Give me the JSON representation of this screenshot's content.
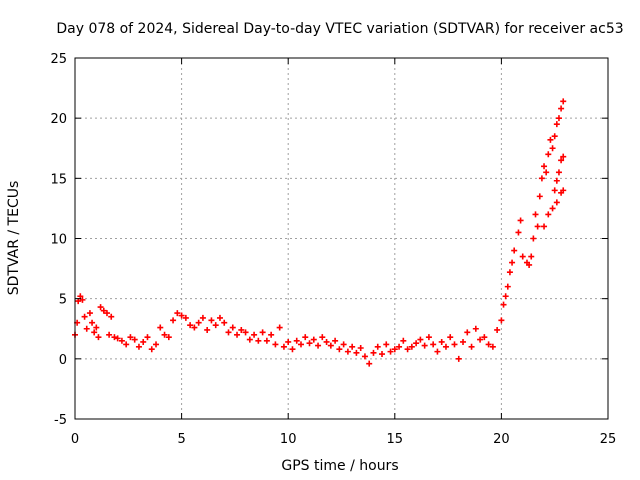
{
  "colors": {
    "series": "#ff0000",
    "grid": "#a0a0a0",
    "axis": "#000000",
    "background": "#ffffff"
  },
  "chart_data": {
    "type": "scatter",
    "title": "Day 078 of 2024, Sidereal Day-to-day VTEC variation (SDTVAR) for receiver ac53",
    "xlabel": "GPS time / hours",
    "ylabel": "SDTVAR / TECUs",
    "xlim": [
      0,
      25
    ],
    "ylim": [
      -5,
      25
    ],
    "xticks": [
      0,
      5,
      10,
      15,
      20,
      25
    ],
    "yticks": [
      -5,
      0,
      5,
      10,
      15,
      20,
      25
    ],
    "grid": true,
    "marker": "+",
    "series": [
      {
        "name": "SDTVAR",
        "color": "#ff0000",
        "points": [
          [
            0.0,
            2.0
          ],
          [
            0.1,
            3.0
          ],
          [
            0.15,
            4.8
          ],
          [
            0.25,
            5.2
          ],
          [
            0.35,
            4.9
          ],
          [
            0.45,
            3.5
          ],
          [
            0.55,
            2.5
          ],
          [
            0.7,
            3.8
          ],
          [
            0.8,
            3.0
          ],
          [
            0.9,
            2.2
          ],
          [
            1.0,
            2.6
          ],
          [
            1.1,
            1.8
          ],
          [
            1.2,
            4.3
          ],
          [
            1.35,
            4.0
          ],
          [
            1.5,
            3.8
          ],
          [
            1.6,
            2.0
          ],
          [
            1.7,
            3.5
          ],
          [
            1.85,
            1.8
          ],
          [
            2.0,
            1.7
          ],
          [
            2.2,
            1.5
          ],
          [
            2.4,
            1.2
          ],
          [
            2.6,
            1.8
          ],
          [
            2.8,
            1.6
          ],
          [
            3.0,
            1.0
          ],
          [
            3.2,
            1.4
          ],
          [
            3.4,
            1.8
          ],
          [
            3.6,
            0.8
          ],
          [
            3.8,
            1.2
          ],
          [
            4.0,
            2.6
          ],
          [
            4.2,
            2.0
          ],
          [
            4.4,
            1.8
          ],
          [
            4.6,
            3.2
          ],
          [
            4.8,
            3.8
          ],
          [
            5.0,
            3.6
          ],
          [
            5.2,
            3.4
          ],
          [
            5.4,
            2.8
          ],
          [
            5.6,
            2.6
          ],
          [
            5.8,
            3.0
          ],
          [
            6.0,
            3.4
          ],
          [
            6.2,
            2.4
          ],
          [
            6.4,
            3.2
          ],
          [
            6.6,
            2.8
          ],
          [
            6.8,
            3.4
          ],
          [
            7.0,
            3.0
          ],
          [
            7.2,
            2.2
          ],
          [
            7.4,
            2.6
          ],
          [
            7.6,
            2.0
          ],
          [
            7.8,
            2.4
          ],
          [
            8.0,
            2.2
          ],
          [
            8.2,
            1.6
          ],
          [
            8.4,
            2.0
          ],
          [
            8.6,
            1.5
          ],
          [
            8.8,
            2.2
          ],
          [
            9.0,
            1.5
          ],
          [
            9.2,
            2.0
          ],
          [
            9.4,
            1.2
          ],
          [
            9.6,
            2.6
          ],
          [
            9.8,
            1.0
          ],
          [
            10.0,
            1.4
          ],
          [
            10.2,
            0.8
          ],
          [
            10.4,
            1.5
          ],
          [
            10.6,
            1.2
          ],
          [
            10.8,
            1.8
          ],
          [
            11.0,
            1.3
          ],
          [
            11.2,
            1.6
          ],
          [
            11.4,
            1.1
          ],
          [
            11.6,
            1.8
          ],
          [
            11.8,
            1.4
          ],
          [
            12.0,
            1.1
          ],
          [
            12.2,
            1.5
          ],
          [
            12.4,
            0.8
          ],
          [
            12.6,
            1.2
          ],
          [
            12.8,
            0.6
          ],
          [
            13.0,
            1.0
          ],
          [
            13.2,
            0.5
          ],
          [
            13.4,
            0.9
          ],
          [
            13.6,
            0.2
          ],
          [
            13.8,
            -0.4
          ],
          [
            14.0,
            0.5
          ],
          [
            14.2,
            1.0
          ],
          [
            14.4,
            0.4
          ],
          [
            14.6,
            1.2
          ],
          [
            14.8,
            0.6
          ],
          [
            15.0,
            0.8
          ],
          [
            15.2,
            1.0
          ],
          [
            15.4,
            1.5
          ],
          [
            15.6,
            0.8
          ],
          [
            15.8,
            1.0
          ],
          [
            16.0,
            1.3
          ],
          [
            16.2,
            1.6
          ],
          [
            16.4,
            1.1
          ],
          [
            16.6,
            1.8
          ],
          [
            16.8,
            1.2
          ],
          [
            17.0,
            0.6
          ],
          [
            17.2,
            1.4
          ],
          [
            17.4,
            1.0
          ],
          [
            17.6,
            1.8
          ],
          [
            17.8,
            1.2
          ],
          [
            18.0,
            0.0
          ],
          [
            18.2,
            1.4
          ],
          [
            18.4,
            2.2
          ],
          [
            18.6,
            1.0
          ],
          [
            18.8,
            2.5
          ],
          [
            19.0,
            1.6
          ],
          [
            19.2,
            1.8
          ],
          [
            19.4,
            1.2
          ],
          [
            19.6,
            1.0
          ],
          [
            19.8,
            2.4
          ],
          [
            20.0,
            3.2
          ],
          [
            20.1,
            4.5
          ],
          [
            20.2,
            5.2
          ],
          [
            20.3,
            6.0
          ],
          [
            20.4,
            7.2
          ],
          [
            20.5,
            8.0
          ],
          [
            20.6,
            9.0
          ],
          [
            20.8,
            10.5
          ],
          [
            20.9,
            11.5
          ],
          [
            21.0,
            8.5
          ],
          [
            21.2,
            8.0
          ],
          [
            21.3,
            7.8
          ],
          [
            21.4,
            8.5
          ],
          [
            21.5,
            10.0
          ],
          [
            21.6,
            12.0
          ],
          [
            21.7,
            11.0
          ],
          [
            21.8,
            13.5
          ],
          [
            21.9,
            15.0
          ],
          [
            22.0,
            16.0
          ],
          [
            22.1,
            15.5
          ],
          [
            22.2,
            17.0
          ],
          [
            22.3,
            18.2
          ],
          [
            22.4,
            17.5
          ],
          [
            22.5,
            18.5
          ],
          [
            22.6,
            19.5
          ],
          [
            22.7,
            20.0
          ],
          [
            22.8,
            20.8
          ],
          [
            22.9,
            21.4
          ],
          [
            22.0,
            11.0
          ],
          [
            22.2,
            12.0
          ],
          [
            22.4,
            12.5
          ],
          [
            22.6,
            13.0
          ],
          [
            22.8,
            13.8
          ],
          [
            22.9,
            14.0
          ],
          [
            22.5,
            14.0
          ],
          [
            22.6,
            14.8
          ],
          [
            22.7,
            15.5
          ],
          [
            22.8,
            16.5
          ],
          [
            22.9,
            16.8
          ]
        ]
      }
    ]
  }
}
